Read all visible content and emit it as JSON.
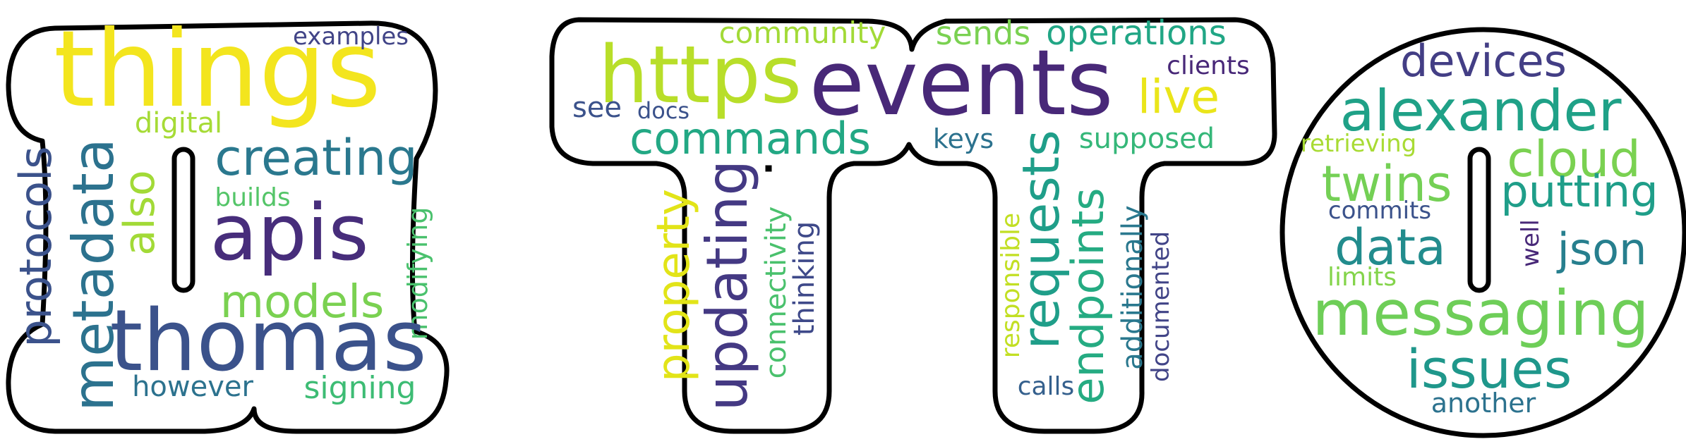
{
  "wordcloud": {
    "letters": [
      "I",
      "T",
      "T",
      "O"
    ],
    "palette": "viridis",
    "words": [
      {
        "text": "things",
        "color": "#f3e51e"
      },
      {
        "text": "examples",
        "color": "#414487"
      },
      {
        "text": "digital",
        "color": "#a6db36"
      },
      {
        "text": "creating",
        "color": "#2a788e"
      },
      {
        "text": "protocols",
        "color": "#3b528b"
      },
      {
        "text": "metadata",
        "color": "#2c728e"
      },
      {
        "text": "also",
        "color": "#a2da37"
      },
      {
        "text": "builds",
        "color": "#54c568"
      },
      {
        "text": "apis",
        "color": "#472d7b"
      },
      {
        "text": "modifying",
        "color": "#4ac16d"
      },
      {
        "text": "models",
        "color": "#7ad151"
      },
      {
        "text": "thomas",
        "color": "#3b528b"
      },
      {
        "text": "however",
        "color": "#2c728e"
      },
      {
        "text": "signing",
        "color": "#3dbc74"
      },
      {
        "text": "https",
        "color": "#b8de29"
      },
      {
        "text": "community",
        "color": "#a2da37"
      },
      {
        "text": "events",
        "color": "#482878"
      },
      {
        "text": "sends",
        "color": "#7ad151"
      },
      {
        "text": "operations",
        "color": "#21a685"
      },
      {
        "text": "clients",
        "color": "#482878"
      },
      {
        "text": "live",
        "color": "#eae51a"
      },
      {
        "text": "see",
        "color": "#3b528b"
      },
      {
        "text": "docs",
        "color": "#3b528b"
      },
      {
        "text": "commands",
        "color": "#22a884"
      },
      {
        "text": "keys",
        "color": "#2c728e"
      },
      {
        "text": "supposed",
        "color": "#35b779"
      },
      {
        "text": "property",
        "color": "#e2e418"
      },
      {
        "text": "updating",
        "color": "#443983"
      },
      {
        "text": "connectivity",
        "color": "#4ac16d"
      },
      {
        "text": "thinking",
        "color": "#3e4989"
      },
      {
        "text": "responsible",
        "color": "#c2df23"
      },
      {
        "text": "requests",
        "color": "#1f9e89"
      },
      {
        "text": "endpoints",
        "color": "#25ab82"
      },
      {
        "text": "additionally",
        "color": "#2a788e"
      },
      {
        "text": "documented",
        "color": "#414487"
      },
      {
        "text": "calls",
        "color": "#35608d"
      },
      {
        "text": "devices",
        "color": "#433e85"
      },
      {
        "text": "alexander",
        "color": "#1fa187"
      },
      {
        "text": "retrieving",
        "color": "#a8db34"
      },
      {
        "text": "cloud",
        "color": "#7ad151"
      },
      {
        "text": "twins",
        "color": "#74d055"
      },
      {
        "text": "putting",
        "color": "#1f9e89"
      },
      {
        "text": "commits",
        "color": "#3b528b"
      },
      {
        "text": "well",
        "color": "#482878"
      },
      {
        "text": "data",
        "color": "#228c8d"
      },
      {
        "text": "json",
        "color": "#277f8e"
      },
      {
        "text": "limits",
        "color": "#84d44b"
      },
      {
        "text": "messaging",
        "color": "#6ece58"
      },
      {
        "text": "issues",
        "color": "#1f978b"
      },
      {
        "text": "another",
        "color": "#2c728e"
      }
    ]
  }
}
